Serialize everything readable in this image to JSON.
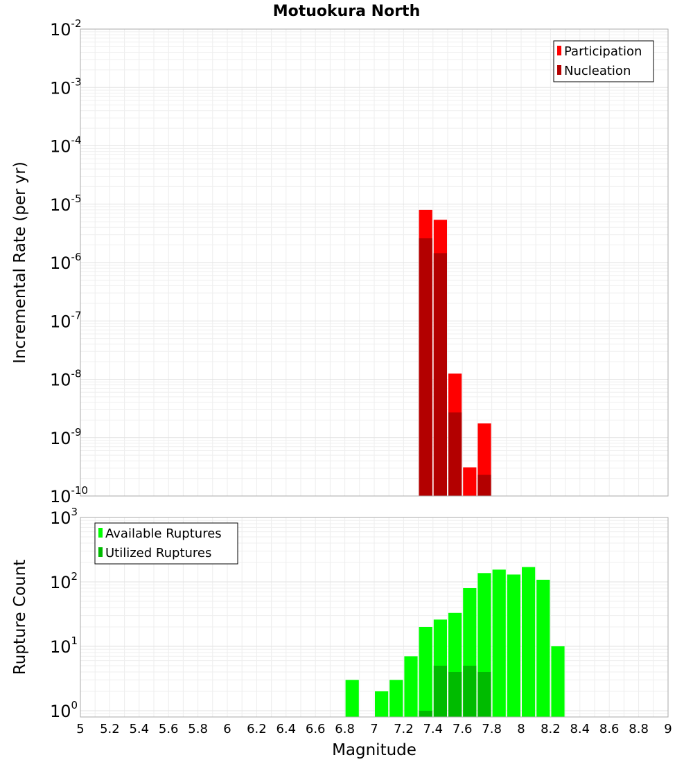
{
  "chart_data": {
    "type": "bar",
    "title": "Motuokura North",
    "xlabel": "Magnitude",
    "x_ticks": [
      "5",
      "5.2",
      "5.4",
      "5.6",
      "5.8",
      "6",
      "6.2",
      "6.4",
      "6.6",
      "6.8",
      "7",
      "7.2",
      "7.4",
      "7.6",
      "7.8",
      "8",
      "8.2",
      "8.4",
      "8.6",
      "8.8",
      "9"
    ],
    "xlim": [
      5,
      9
    ],
    "bin_width": 0.1,
    "grid": true,
    "panels": [
      {
        "ylabel": "Incremental Rate (per yr)",
        "yscale": "log",
        "ylim": [
          1e-10,
          0.01
        ],
        "y_tick_exponents": [
          "-10",
          "-9",
          "-8",
          "-7",
          "-6",
          "-5",
          "-4",
          "-3",
          "-2"
        ],
        "legend_position": "top-right",
        "series": [
          {
            "name": "Participation",
            "color": "#ff0000",
            "x": [
              7.35,
              7.45,
              7.55,
              7.65,
              7.75
            ],
            "values": [
              8e-06,
              5.4e-06,
              1.25e-08,
              3.1e-10,
              1.75e-09
            ]
          },
          {
            "name": "Nucleation",
            "color": "#b30000",
            "x": [
              7.35,
              7.45,
              7.55,
              7.65,
              7.75
            ],
            "values": [
              2.6e-06,
              1.45e-06,
              2.7e-09,
              1e-10,
              2.3e-10
            ]
          }
        ]
      },
      {
        "ylabel": "Rupture Count",
        "yscale": "log",
        "ylim": [
          0.8,
          1000
        ],
        "y_tick_exponents": [
          "0",
          "1",
          "2",
          "3"
        ],
        "legend_position": "top-left",
        "series": [
          {
            "name": "Available Ruptures",
            "color": "#00ff00",
            "x": [
              6.85,
              7.05,
              7.15,
              7.25,
              7.35,
              7.45,
              7.55,
              7.65,
              7.75,
              7.85,
              7.95,
              8.05,
              8.15,
              8.25
            ],
            "values": [
              3,
              2,
              3,
              7,
              20,
              26,
              33,
              80,
              137,
              155,
              130,
              170,
              108,
              10
            ]
          },
          {
            "name": "Utilized Ruptures",
            "color": "#00bb00",
            "x": [
              7.35,
              7.45,
              7.55,
              7.65,
              7.75
            ],
            "values": [
              1,
              5,
              4,
              5,
              4
            ]
          }
        ]
      }
    ]
  }
}
